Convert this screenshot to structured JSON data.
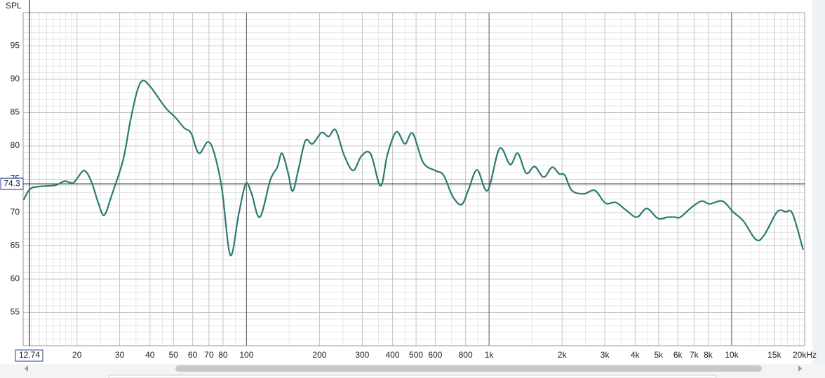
{
  "chart_data": {
    "type": "line",
    "y_label": "SPL",
    "color": "#2b7a72",
    "scale_x": "log",
    "grid": true,
    "xlim": [
      12,
      20000
    ],
    "ylim": [
      50,
      100
    ],
    "xticks": [
      20,
      30,
      40,
      50,
      60,
      70,
      80,
      100,
      200,
      300,
      400,
      500,
      600,
      800,
      {
        "value": 1000,
        "label": "1k"
      },
      {
        "value": 2000,
        "label": "2k"
      },
      {
        "value": 3000,
        "label": "3k"
      },
      {
        "value": 4000,
        "label": "4k"
      },
      {
        "value": 5000,
        "label": "5k"
      },
      {
        "value": 6000,
        "label": "6k"
      },
      {
        "value": 7000,
        "label": "7k"
      },
      {
        "value": 8000,
        "label": "8k"
      },
      {
        "value": 10000,
        "label": "10k"
      },
      {
        "value": 15000,
        "label": "15k"
      },
      {
        "value": 20000,
        "label": "20kHz"
      }
    ],
    "xminor": [
      13,
      14,
      15,
      16,
      17,
      18,
      19,
      25,
      35,
      45,
      90,
      150,
      250,
      350,
      450,
      700,
      900,
      1500,
      2500,
      3500,
      4500,
      9000,
      12000,
      13000,
      14000,
      16000,
      17000,
      18000,
      19000
    ],
    "yticks": [
      55,
      60,
      65,
      70,
      75,
      80,
      85,
      90,
      95
    ],
    "yminor": [
      51,
      52,
      53,
      54,
      56,
      57,
      58,
      59,
      61,
      62,
      63,
      64,
      66,
      67,
      68,
      69,
      71,
      72,
      73,
      74,
      76,
      77,
      78,
      79,
      81,
      82,
      83,
      84,
      86,
      87,
      88,
      89,
      91,
      92,
      93,
      94,
      96,
      97,
      98,
      99
    ],
    "cursor": {
      "x": 12.74,
      "y": 74.3
    },
    "x": [
      12.05,
      12.8,
      13.95,
      16.3,
      17.8,
      19.2,
      20.1,
      21.5,
      23.0,
      24.5,
      25.9,
      27.7,
      31.0,
      33.1,
      35.4,
      37.4,
      40.5,
      46.2,
      51.1,
      55.3,
      59.1,
      63.6,
      69.3,
      73.6,
      79.2,
      85.8,
      92.9,
      99.3,
      104.8,
      113.5,
      125.4,
      134,
      140,
      148,
      155,
      164,
      175,
      187,
      204,
      218,
      233,
      252,
      275,
      298,
      325,
      357,
      381,
      415,
      450,
      484,
      535,
      599,
      649,
      708,
      771,
      824,
      893,
      986,
      1104,
      1222,
      1313,
      1422,
      1541,
      1680,
      1820,
      1945,
      2052,
      2194,
      2456,
      2731,
      3019,
      3336,
      3684,
      4071,
      4468,
      4973,
      5458,
      5834,
      6151,
      6798,
      7510,
      8130,
      9163,
      10130,
      11190,
      12620,
      13670,
      15410,
      16700,
      17840,
      19720
    ],
    "values": [
      71.9,
      73.5,
      73.9,
      74.1,
      74.7,
      74.4,
      75.2,
      76.3,
      74.5,
      71.4,
      69.6,
      72.4,
      77.9,
      83.5,
      88.2,
      89.8,
      88.7,
      85.8,
      84.2,
      82.7,
      81.9,
      78.9,
      80.6,
      78.9,
      73.5,
      63.6,
      69.8,
      74.3,
      72.9,
      69.3,
      74.9,
      76.8,
      78.9,
      76.1,
      73.2,
      76.6,
      80.8,
      80.3,
      82.0,
      81.4,
      82.4,
      78.7,
      76.3,
      78.5,
      78.8,
      74.0,
      78.7,
      82.1,
      80.3,
      81.9,
      77.5,
      76.3,
      75.6,
      72.4,
      71.2,
      73.5,
      76.4,
      73.3,
      79.6,
      77.2,
      78.9,
      75.9,
      76.9,
      75.3,
      76.8,
      75.8,
      75.6,
      73.3,
      72.8,
      73.3,
      71.4,
      71.5,
      70.3,
      69.3,
      70.6,
      69.1,
      69.3,
      69.3,
      69.3,
      70.7,
      71.7,
      71.3,
      71.7,
      70.1,
      68.7,
      65.9,
      66.7,
      70.1,
      70.1,
      69.8,
      64.4
    ]
  }
}
